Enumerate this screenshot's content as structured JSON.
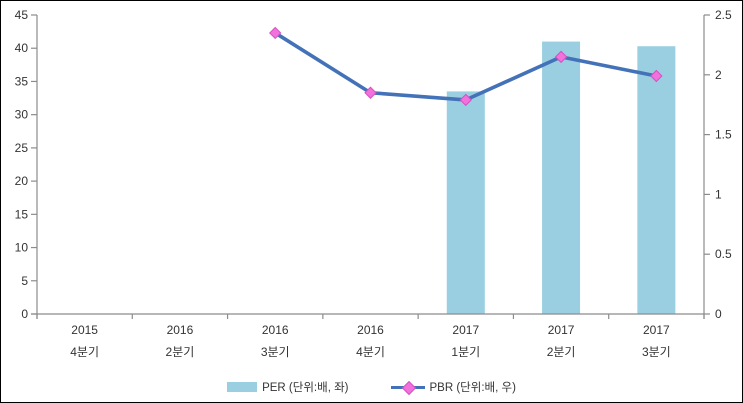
{
  "chart_data": {
    "type": "bar",
    "categories": [
      {
        "line1": "2015",
        "line2": "4분기"
      },
      {
        "line1": "2016",
        "line2": "2분기"
      },
      {
        "line1": "2016",
        "line2": "3분기"
      },
      {
        "line1": "2016",
        "line2": "4분기"
      },
      {
        "line1": "2017",
        "line2": "1분기"
      },
      {
        "line1": "2017",
        "line2": "2분기"
      },
      {
        "line1": "2017",
        "line2": "3분기"
      }
    ],
    "series": [
      {
        "name": "PER (단위:배, 좌)",
        "type": "bar",
        "axis": "left",
        "color": "#99CFE0",
        "values": [
          null,
          null,
          null,
          null,
          33.5,
          41,
          40.3
        ]
      },
      {
        "name": "PBR (단위:배, 우)",
        "type": "line",
        "axis": "right",
        "color": "#4472B8",
        "marker_color": "#F172DC",
        "marker_border_color": "#D650C0",
        "values": [
          null,
          null,
          2.35,
          1.85,
          1.79,
          2.15,
          1.99
        ]
      }
    ],
    "left_axis": {
      "min": 0,
      "max": 45,
      "ticks": [
        "0",
        "5",
        "10",
        "15",
        "20",
        "25",
        "30",
        "35",
        "40",
        "45"
      ]
    },
    "right_axis": {
      "min": 0,
      "max": 2.5,
      "ticks": [
        "0",
        "0.5",
        "1",
        "1.5",
        "2",
        "2.5"
      ]
    },
    "axis_color": "#8C8C8C",
    "label_color": "#333333",
    "grid": false,
    "legend_position": "bottom",
    "title": ""
  }
}
